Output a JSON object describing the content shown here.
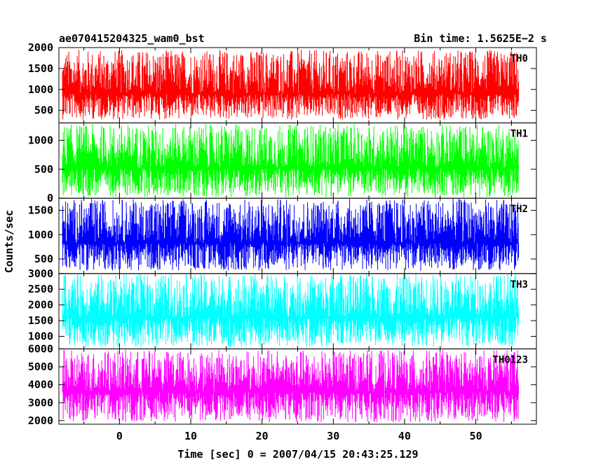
{
  "header": {
    "title": "ae070415204325_wam0_bst",
    "bin_time": "Bin time: 1.5625E−2 s"
  },
  "chart_data": {
    "type": "line",
    "xlabel": "Time [sec] 0 = 2007/04/15 20:43:25.129",
    "ylabel": "Counts/sec",
    "xlim": [
      -8.5,
      58.5
    ],
    "x_ticks": [
      "0",
      "10",
      "20",
      "30",
      "40",
      "50"
    ],
    "data_x_range": [
      -8,
      56
    ],
    "bin_time": 0.015625,
    "panels": [
      {
        "name": "TH0",
        "color": "#ff0000",
        "ylim": [
          200,
          2000
        ],
        "y_ticks": [
          "2000",
          "1500",
          "1000",
          "500"
        ],
        "base": 900,
        "low": 280,
        "high": 1950
      },
      {
        "name": "TH1",
        "color": "#00ff00",
        "ylim": [
          0,
          1300
        ],
        "y_ticks": [
          "1000",
          "500",
          "0"
        ],
        "base": 520,
        "low": 20,
        "high": 1280
      },
      {
        "name": "TH2",
        "color": "#0000ff",
        "ylim": [
          200,
          1750
        ],
        "y_ticks": [
          "1500",
          "1000",
          "500"
        ],
        "base": 830,
        "low": 260,
        "high": 1740
      },
      {
        "name": "TH3",
        "color": "#00ffff",
        "ylim": [
          600,
          3000
        ],
        "y_ticks": [
          "3000",
          "2500",
          "2000",
          "1500",
          "1000"
        ],
        "base": 1600,
        "low": 650,
        "high": 2990
      },
      {
        "name": "TH0123",
        "color": "#ff00ff",
        "ylim": [
          1800,
          6000
        ],
        "y_ticks": [
          "6000",
          "5000",
          "4000",
          "3000",
          "2000"
        ],
        "base": 3600,
        "low": 1900,
        "high": 5950
      }
    ]
  }
}
